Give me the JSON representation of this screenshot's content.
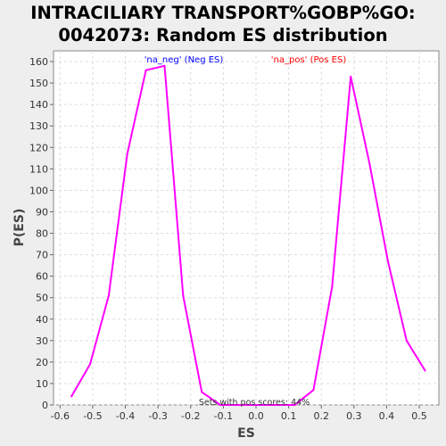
{
  "chart_data": {
    "type": "line",
    "title_line1": "INTRACILIARY TRANSPORT%GOBP%GO:",
    "title_line2": "0042073: Random ES distribution",
    "xlabel": "ES",
    "ylabel": "P(ES)",
    "xlim": [
      -0.62,
      0.56
    ],
    "ylim": [
      0,
      165
    ],
    "x_ticks": [
      -0.6,
      -0.5,
      -0.4,
      -0.3,
      -0.2,
      -0.1,
      0.0,
      0.1,
      0.2,
      0.3,
      0.4,
      0.5
    ],
    "x_tick_labels": [
      "-0.6",
      "-0.5",
      "-0.4",
      "-0.3",
      "-0.2",
      "-0.1",
      "0.0",
      "0.1",
      "0.2",
      "0.3",
      "0.4",
      "0.5"
    ],
    "y_ticks": [
      0,
      10,
      20,
      30,
      40,
      50,
      60,
      70,
      80,
      90,
      100,
      110,
      120,
      130,
      140,
      150,
      160
    ],
    "y_tick_labels": [
      "0",
      "10",
      "20",
      "30",
      "40",
      "50",
      "60",
      "70",
      "80",
      "90",
      "100",
      "110",
      "120",
      "130",
      "140",
      "150",
      "160"
    ],
    "grid": true,
    "legend": [
      {
        "label": "'na_neg' (Neg ES)",
        "color": "#0000ff"
      },
      {
        "label": "'na_pos' (Pos ES)",
        "color": "#ff0000"
      }
    ],
    "annotation": "Sets with pos scores: 44%",
    "series": [
      {
        "color": "#ff00ff",
        "x": [
          -0.565,
          -0.508,
          -0.451,
          -0.394,
          -0.337,
          -0.28,
          -0.223,
          -0.166,
          -0.109,
          -0.052,
          0.005,
          0.062,
          0.119,
          0.176,
          0.233,
          0.29,
          0.347,
          0.404,
          0.461,
          0.518
        ],
        "y": [
          4,
          19,
          51,
          117,
          156,
          158,
          51,
          6,
          0,
          0,
          0,
          0,
          0,
          7,
          55,
          153,
          113,
          67,
          30,
          16
        ]
      }
    ]
  }
}
